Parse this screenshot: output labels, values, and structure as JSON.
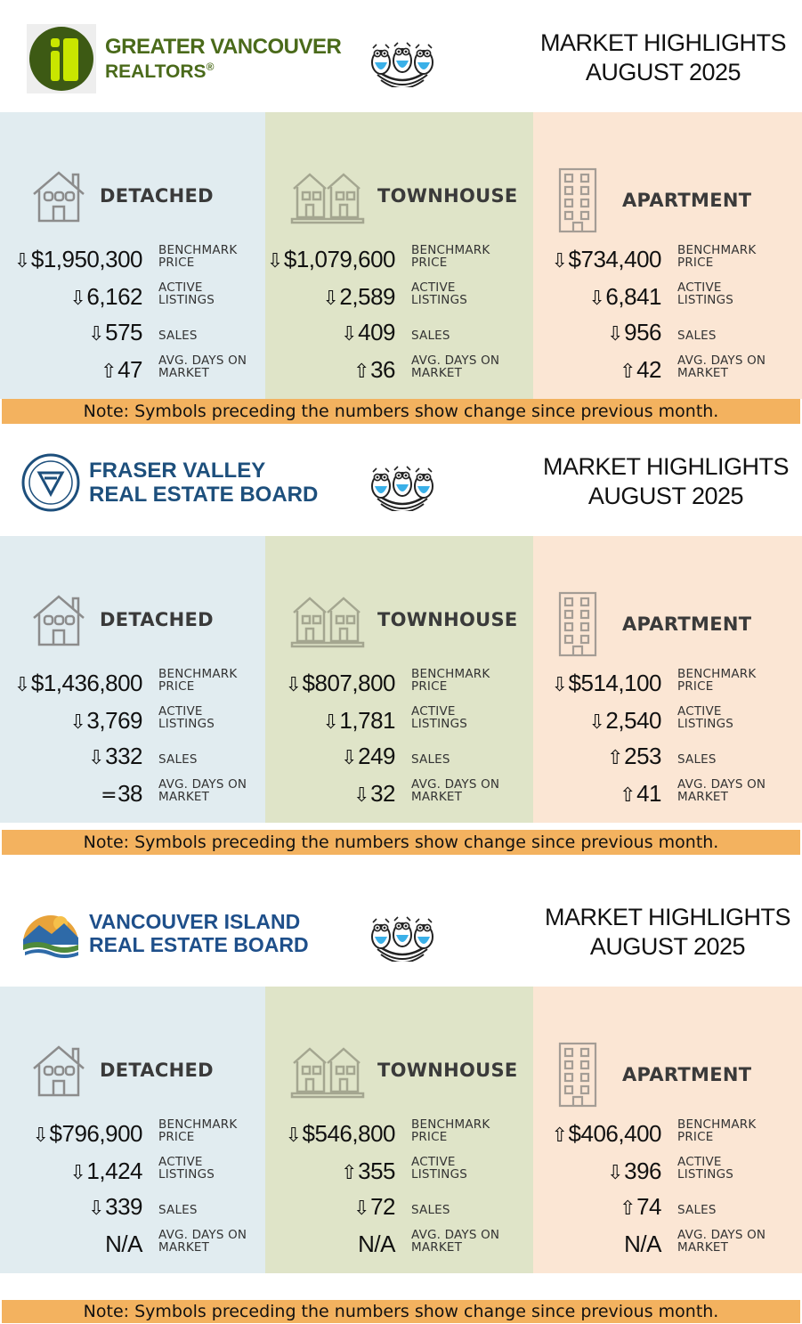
{
  "note_text": "Note: Symbols preceding the numbers show change since previous month.",
  "headline": {
    "line1": "MARKET HIGHLIGHTS",
    "line2": "AUGUST 2025"
  },
  "labels": {
    "benchmark": [
      "BENCHMARK",
      "PRICE"
    ],
    "active": [
      "ACTIVE",
      "LISTINGS"
    ],
    "sales": [
      "SALES"
    ],
    "days": [
      "AVG. DAYS ON",
      "MARKET"
    ]
  },
  "property_types": {
    "detached": "DETACHED",
    "townhouse": "TOWNHOUSE",
    "apartment": "APARTMENT"
  },
  "colors": {
    "detached_bg": "#e1ecf0",
    "townhouse_bg": "#dfe4c8",
    "apartment_bg": "#fbe6d4",
    "note_bg": "#f3b25f",
    "gvr_green": "#3d5a14",
    "fvreb_blue": "#1d4f7c",
    "vireb_blue": "#1e4f8a"
  },
  "boards": [
    {
      "name_line1": "GREATER VANCOUVER",
      "name_line2": "REALTORS",
      "registered": "®",
      "detached": {
        "benchmark": {
          "sym": "⇩",
          "value": "$1,950,300"
        },
        "active": {
          "sym": "⇩",
          "value": "6,162"
        },
        "sales": {
          "sym": "⇩",
          "value": "575"
        },
        "days": {
          "sym": "⇧",
          "value": "47"
        }
      },
      "townhouse": {
        "benchmark": {
          "sym": "⇩",
          "value": "$1,079,600"
        },
        "active": {
          "sym": "⇩",
          "value": "2,589"
        },
        "sales": {
          "sym": "⇩",
          "value": "409"
        },
        "days": {
          "sym": "⇧",
          "value": "36"
        }
      },
      "apartment": {
        "benchmark": {
          "sym": "⇩",
          "value": "$734,400"
        },
        "active": {
          "sym": "⇩",
          "value": "6,841"
        },
        "sales": {
          "sym": "⇩",
          "value": "956"
        },
        "days": {
          "sym": "⇧",
          "value": "42"
        }
      }
    },
    {
      "name_line1": "FRASER VALLEY",
      "name_line2": "REAL ESTATE BOARD",
      "detached": {
        "benchmark": {
          "sym": "⇩",
          "value": "$1,436,800"
        },
        "active": {
          "sym": "⇩",
          "value": "3,769"
        },
        "sales": {
          "sym": "⇩",
          "value": "332"
        },
        "days": {
          "sym": "=",
          "value": "38"
        }
      },
      "townhouse": {
        "benchmark": {
          "sym": "⇩",
          "value": "$807,800"
        },
        "active": {
          "sym": "⇩",
          "value": "1,781"
        },
        "sales": {
          "sym": "⇩",
          "value": "249"
        },
        "days": {
          "sym": "⇩",
          "value": "32"
        }
      },
      "apartment": {
        "benchmark": {
          "sym": "⇩",
          "value": "$514,100"
        },
        "active": {
          "sym": "⇩",
          "value": "2,540"
        },
        "sales": {
          "sym": "⇧",
          "value": "253"
        },
        "days": {
          "sym": "⇧",
          "value": "41"
        }
      }
    },
    {
      "name_line1": "VANCOUVER ISLAND",
      "name_line2": "REAL ESTATE BOARD",
      "detached": {
        "benchmark": {
          "sym": "⇩",
          "value": "$796,900"
        },
        "active": {
          "sym": "⇩",
          "value": "1,424"
        },
        "sales": {
          "sym": "⇩",
          "value": "339"
        },
        "days": {
          "sym": "",
          "value": "N/A"
        }
      },
      "townhouse": {
        "benchmark": {
          "sym": "⇩",
          "value": "$546,800"
        },
        "active": {
          "sym": "⇧",
          "value": "355"
        },
        "sales": {
          "sym": "⇩",
          "value": "72"
        },
        "days": {
          "sym": "",
          "value": "N/A"
        }
      },
      "apartment": {
        "benchmark": {
          "sym": "⇧",
          "value": "$406,400"
        },
        "active": {
          "sym": "⇩",
          "value": "396"
        },
        "sales": {
          "sym": "⇧",
          "value": "74"
        },
        "days": {
          "sym": "",
          "value": "N/A"
        }
      }
    }
  ]
}
